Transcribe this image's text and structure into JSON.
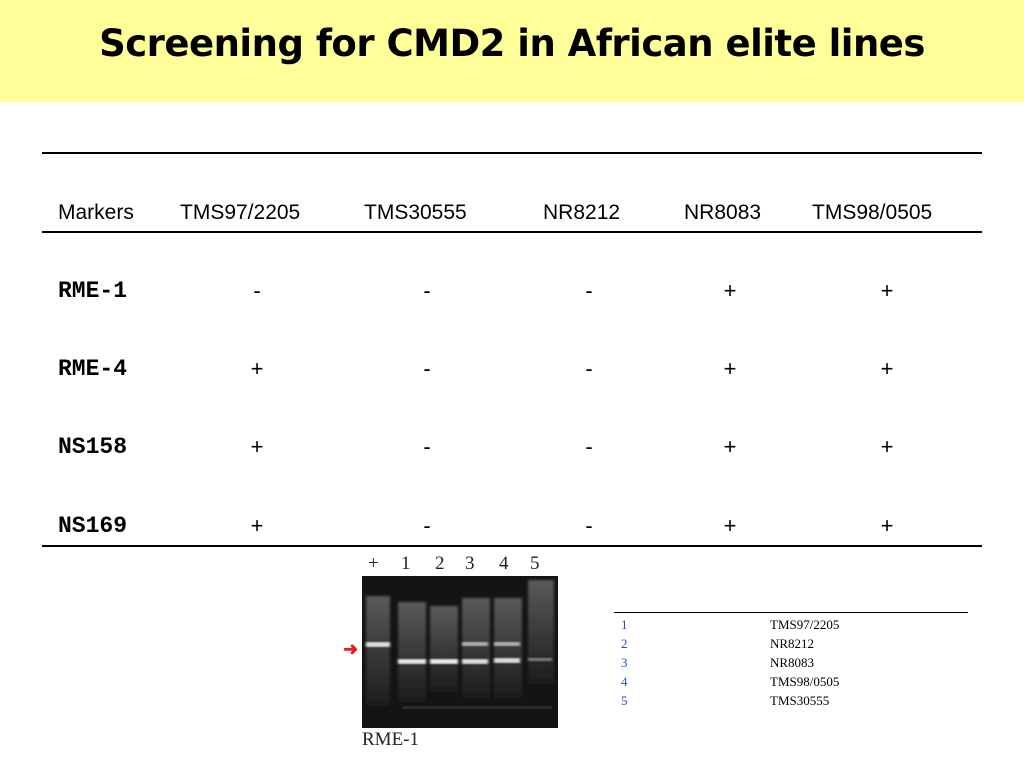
{
  "title": "Screening for CMD2 in African elite lines",
  "table": {
    "headers": [
      "Markers",
      "TMS97/2205",
      "TMS30555",
      "NR8212",
      "NR8083",
      "TMS98/0505"
    ],
    "rows": [
      {
        "marker": "RME-1",
        "values": [
          "-",
          "-",
          "-",
          "+",
          "+"
        ]
      },
      {
        "marker": "RME-4",
        "values": [
          "+",
          "-",
          "-",
          "+",
          "+"
        ]
      },
      {
        "marker": "NS158",
        "values": [
          "+",
          "-",
          "-",
          "+",
          "+"
        ]
      },
      {
        "marker": "NS169",
        "values": [
          "+",
          "-",
          "-",
          "+",
          "+"
        ]
      }
    ]
  },
  "gel": {
    "lane_labels": [
      "+",
      "1",
      "2",
      "3",
      "4",
      "5"
    ],
    "caption": "RME-1"
  },
  "legend": [
    {
      "num": "1",
      "name": "TMS97/2205"
    },
    {
      "num": "2",
      "name": "NR8212"
    },
    {
      "num": "3",
      "name": "NR8083"
    },
    {
      "num": "4",
      "name": "TMS98/0505"
    },
    {
      "num": "5",
      "name": "TMS30555"
    }
  ]
}
